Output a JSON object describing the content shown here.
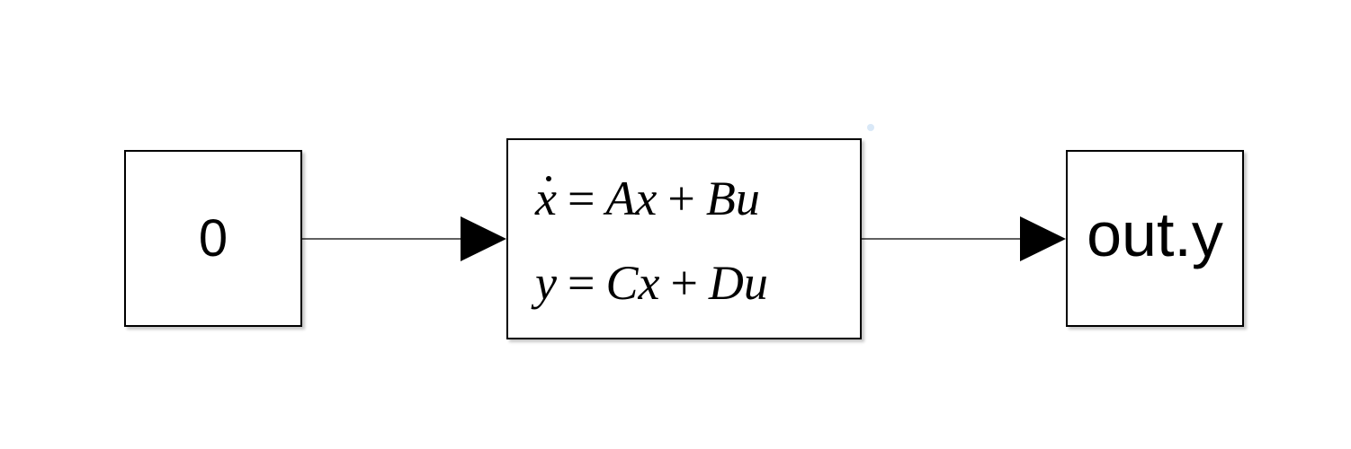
{
  "diagram": {
    "blocks": [
      {
        "id": "constant",
        "type": "Constant",
        "label": "0"
      },
      {
        "id": "statespace",
        "type": "State-Space",
        "equations": {
          "line1": {
            "lhs": "x",
            "rhs_a": "Ax",
            "op": "+",
            "rhs_b": "Bu"
          },
          "line2": {
            "lhs": "y",
            "rhs_a": "Cx",
            "op": "+",
            "rhs_b": "Du"
          }
        }
      },
      {
        "id": "toworkspace",
        "type": "To Workspace",
        "label": "out.y"
      }
    ],
    "connections": [
      {
        "from": "constant",
        "to": "statespace"
      },
      {
        "from": "statespace",
        "to": "toworkspace"
      }
    ],
    "colors": {
      "line": "#000000",
      "background": "#ffffff",
      "block_fill": "#ffffff"
    }
  }
}
